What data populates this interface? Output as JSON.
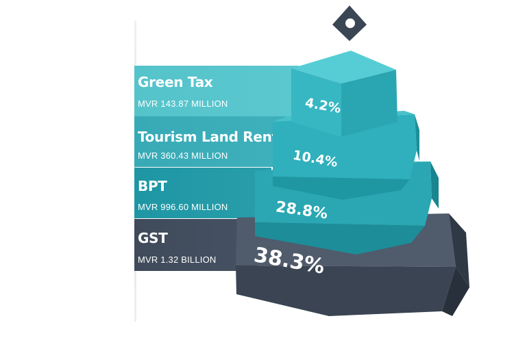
{
  "chart_data": {
    "type": "pyramid",
    "categories": [
      "Green Tax",
      "Tourism Land Rent",
      "BPT",
      "GST"
    ],
    "amounts": [
      "MVR 143.87 MILLION",
      "MVR 360.43 MILLION",
      "MVR 996.60 MILLION",
      "MVR 1.32 BILLION"
    ],
    "values": [
      4.2,
      10.4,
      28.8,
      38.3
    ],
    "value_labels": [
      "4.2%",
      "10.4%",
      "28.8%",
      "38.3%"
    ],
    "colors": [
      "#4cc1c9",
      "#33aab5",
      "#1f95a3",
      "#3f4a5a"
    ]
  },
  "icon": "ballot-icon"
}
